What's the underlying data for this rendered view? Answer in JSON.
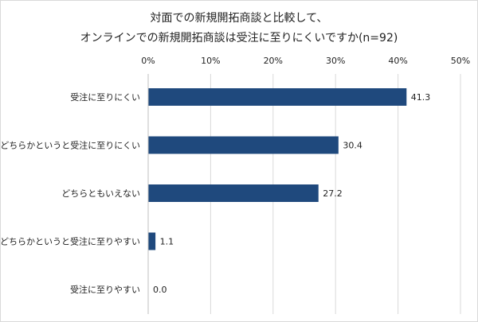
{
  "chart_data": {
    "type": "bar",
    "orientation": "horizontal",
    "title_lines": [
      "対面での新規開拓商談と比較して、",
      "オンラインでの新規開拓商談は受注に至りにくいですか(n=92)"
    ],
    "categories": [
      "受注に至りにくい",
      "どちらかというと受注に至りにくい",
      "どちらともいえない",
      "どちらかというと受注に至りやすい",
      "受注に至りやすい"
    ],
    "values": [
      41.3,
      30.4,
      27.2,
      1.1,
      0.0
    ],
    "data_labels": [
      "41.3",
      "30.4",
      "27.2",
      "1.1",
      "0.0"
    ],
    "xlim": [
      0,
      50
    ],
    "xticks": [
      0,
      10,
      20,
      30,
      40,
      50
    ],
    "xtick_labels": [
      "0%",
      "10%",
      "20%",
      "30%",
      "40%",
      "50%"
    ],
    "xaxis_position": "top",
    "grid": true,
    "bar_color": "#1f497d",
    "grid_color": "#d9d9d9"
  }
}
